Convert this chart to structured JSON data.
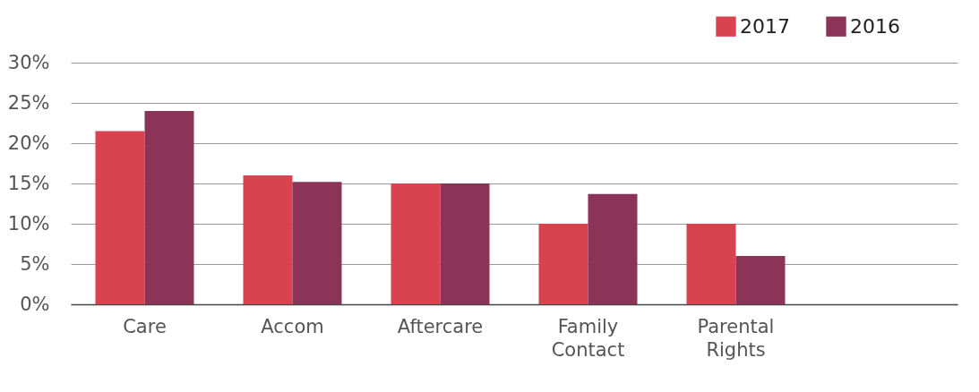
{
  "chart_data": {
    "type": "bar",
    "categories": [
      "Care",
      "Accom",
      "Aftercare",
      "Family Contact",
      "Parental Rights",
      null
    ],
    "series": [
      {
        "name": "2017",
        "color": "#d8434f",
        "values": [
          21.5,
          16,
          15,
          10,
          10,
          null
        ]
      },
      {
        "name": "2016",
        "color": "#8c3457",
        "values": [
          24,
          15.2,
          15,
          13.7,
          6,
          null
        ]
      }
    ],
    "ylim": [
      0,
      30
    ],
    "yticks": [
      {
        "value": 0,
        "label": "0%"
      },
      {
        "value": 5,
        "label": "5%"
      },
      {
        "value": 10,
        "label": "10%"
      },
      {
        "value": 15,
        "label": "15%"
      },
      {
        "value": 20,
        "label": "20%"
      },
      {
        "value": 25,
        "label": "25%"
      },
      {
        "value": 30,
        "label": "30%"
      }
    ],
    "grid": "y",
    "legend": "top right"
  }
}
